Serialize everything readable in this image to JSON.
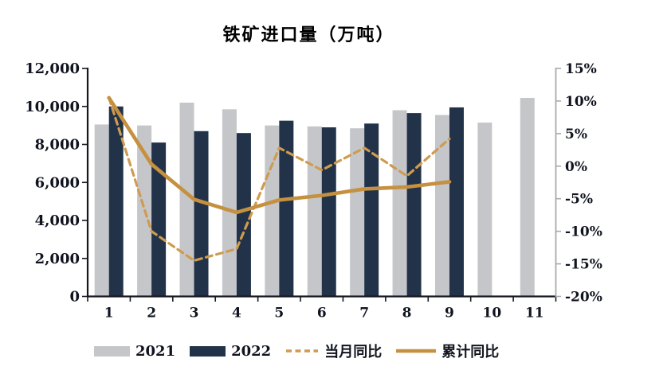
{
  "title": "铁矿进口量（万吨）",
  "legend": {
    "items": [
      "2021",
      "2022",
      "当月同比",
      "累计同比"
    ]
  },
  "colors": {
    "bar_2021": "#c5c6ca",
    "bar_2022": "#223349",
    "line_monthly_yoy": "#cf9b50",
    "line_cumulative_yoy": "#c5903f",
    "axis_dark": "#15181f",
    "axis_right_gray": "#a8aaad",
    "tick_label": "#10141f"
  },
  "chart_data": {
    "type": "bar",
    "title": "铁矿进口量（万吨）",
    "xlabel": "",
    "ylabel_left": "",
    "ylabel_right": "",
    "grid": false,
    "legend_position": "bottom",
    "categories": [
      "1",
      "2",
      "3",
      "4",
      "5",
      "6",
      "7",
      "8",
      "9",
      "10",
      "11"
    ],
    "bar_series": [
      {
        "name": "2021",
        "color": "#c5c6ca",
        "values": [
          9050,
          9000,
          10200,
          9850,
          9000,
          8950,
          8850,
          9800,
          9550,
          9150,
          10450
        ]
      },
      {
        "name": "2022",
        "color": "#223349",
        "values": [
          10000,
          8100,
          8700,
          8600,
          9250,
          8900,
          9100,
          9650,
          9950,
          null,
          null
        ]
      }
    ],
    "line_series": [
      {
        "name": "当月同比",
        "style": "dashed",
        "color": "#cf9b50",
        "axis": "right",
        "values": [
          10.5,
          -10.0,
          -14.5,
          -12.7,
          2.8,
          -0.6,
          2.8,
          -1.5,
          4.2
        ]
      },
      {
        "name": "累计同比",
        "style": "solid",
        "color": "#c5903f",
        "axis": "right",
        "values": [
          10.5,
          0.3,
          -5.1,
          -7.1,
          -5.2,
          -4.5,
          -3.5,
          -3.2,
          -2.4
        ]
      }
    ],
    "left_axis": {
      "min": 0,
      "max": 12000,
      "step": 2000,
      "tick_values": [
        0,
        2000,
        4000,
        6000,
        8000,
        10000,
        12000
      ],
      "tick_labels": [
        "0",
        "2,000",
        "4,000",
        "6,000",
        "8,000",
        "10,000",
        "12,000"
      ]
    },
    "right_axis": {
      "min": -20,
      "max": 15,
      "step": 5,
      "tick_values": [
        -20,
        -15,
        -10,
        -5,
        0,
        5,
        10,
        15
      ],
      "tick_labels": [
        "-20%",
        "-15%",
        "-10%",
        "-5%",
        "0%",
        "5%",
        "10%",
        "15%"
      ]
    }
  }
}
